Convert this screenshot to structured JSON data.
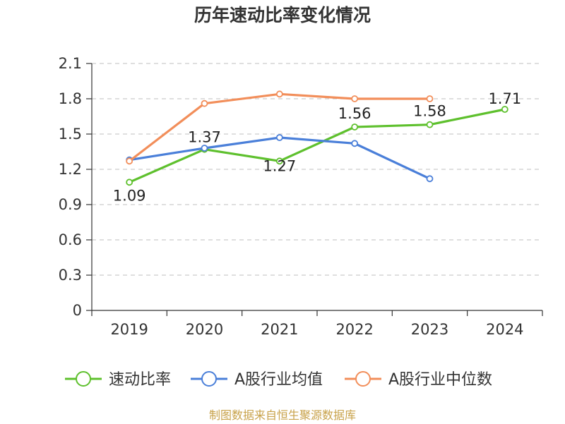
{
  "title": "历年速动比率变化情况",
  "source": "制图数据来自恒生聚源数据库",
  "chart_data": {
    "type": "line",
    "categories": [
      "2019",
      "2020",
      "2021",
      "2022",
      "2023",
      "2024"
    ],
    "ylim": [
      0,
      2.1
    ],
    "yticks": [
      "0",
      "0.3",
      "0.6",
      "0.9",
      "1.2",
      "1.5",
      "1.8",
      "2.1"
    ],
    "grid": true,
    "legend_position": "bottom",
    "series": [
      {
        "name": "速动比率",
        "color": "#5ec02d",
        "values": [
          1.09,
          1.37,
          1.27,
          1.56,
          1.58,
          1.71
        ],
        "labels": [
          "1.09",
          "1.37",
          "1.27",
          "1.56",
          "1.58",
          "1.71"
        ]
      },
      {
        "name": "A股行业均值",
        "color": "#4a7fd9",
        "values": [
          1.28,
          1.38,
          1.47,
          1.42,
          1.12,
          null
        ]
      },
      {
        "name": "A股行业中位数",
        "color": "#f28e5a",
        "values": [
          1.27,
          1.76,
          1.84,
          1.8,
          1.8,
          null
        ]
      }
    ]
  }
}
